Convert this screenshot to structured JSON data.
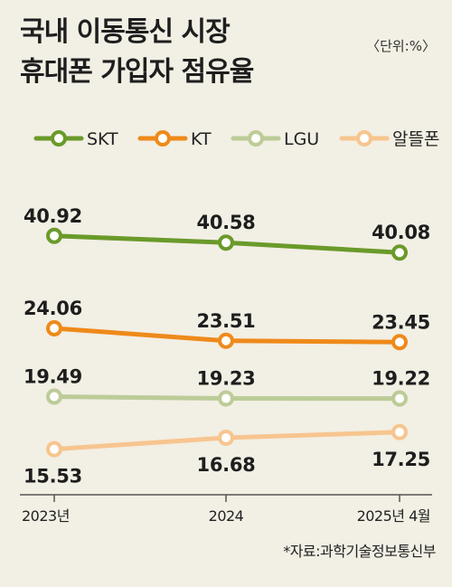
{
  "header": {
    "title_line1": "국내 이동통신 시장",
    "title_line2": "휴대폰 가입자 점유율",
    "unit": "〈단위:%〉"
  },
  "footer": {
    "source": "*자료:과학기술정보통신부"
  },
  "chart_data": {
    "type": "line",
    "title": "국내 이동통신 시장 휴대폰 가입자 점유율",
    "unit": "〈단위:%〉",
    "x": [
      "2023년",
      "2024",
      "2025년 4월"
    ],
    "series": [
      {
        "name": "SKT",
        "color": "#6a9a2a",
        "values": [
          40.92,
          40.58,
          40.08
        ]
      },
      {
        "name": "KT",
        "color": "#ee8a1a",
        "values": [
          24.06,
          23.51,
          23.45
        ]
      },
      {
        "name": "LGU",
        "color": "#bccc98",
        "values": [
          19.49,
          19.23,
          19.22
        ]
      },
      {
        "name": "알뜰폰",
        "color": "#f7c58f",
        "values": [
          15.53,
          16.68,
          17.25
        ]
      }
    ],
    "legend_position": "top",
    "grid": false
  }
}
